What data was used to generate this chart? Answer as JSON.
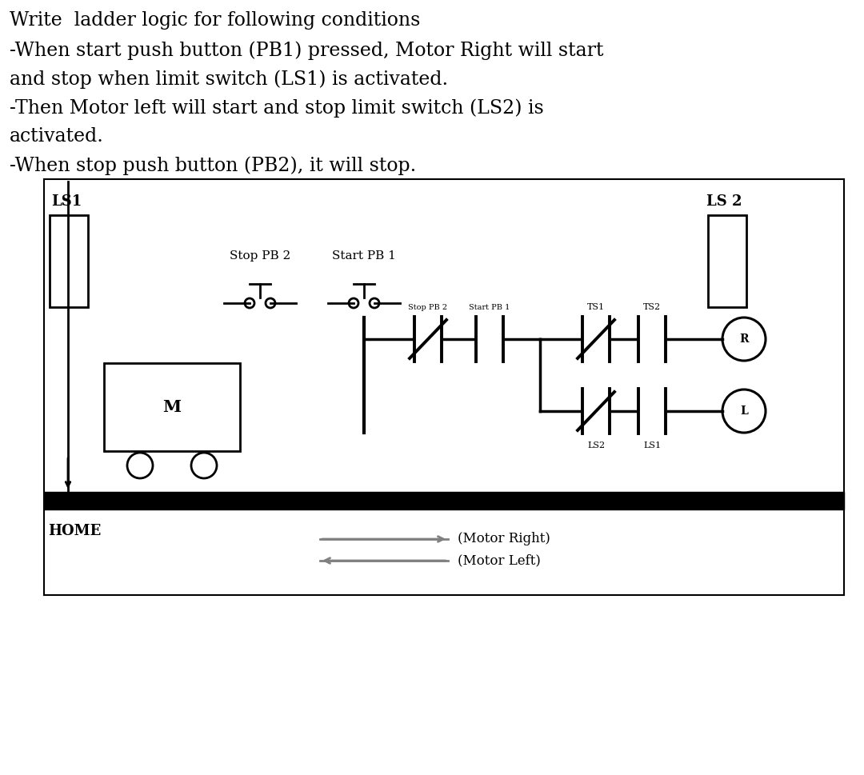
{
  "title_lines": [
    "Write  ladder logic for following conditions",
    "-When start push button (PB1) pressed, Motor Right will start",
    "and stop when limit switch (LS1) is activated.",
    "-Then Motor left will start and stop limit switch (LS2) is",
    "activated.",
    "-When stop push button (PB2), it will stop."
  ],
  "bg_color": "#ffffff",
  "text_color": "#000000",
  "title_fontsize": 17,
  "diagram": {
    "ls1_label": "LS1",
    "ls2_label": "LS 2",
    "stop_pb2_label": "Stop PB 2",
    "start_pb1_label": "Start PB 1",
    "motor_label": "M",
    "home_label": "HOME",
    "motor_right_label": "(Motor Right)",
    "motor_left_label": "(Motor Left)",
    "r_label": "R",
    "l_label": "L",
    "ts1_label": "TS1",
    "ts2_label": "TS2",
    "stop_pb2_small": "Stop PB 2",
    "start_pb1_small": "Start PB 1",
    "ls1_small": "LS1",
    "ls2_small": "LS2"
  }
}
